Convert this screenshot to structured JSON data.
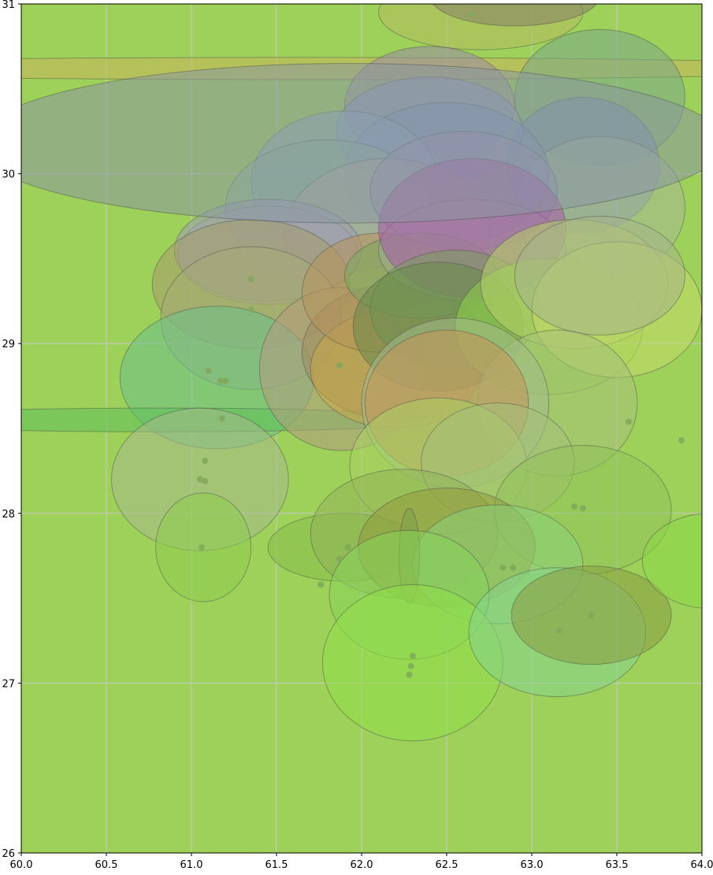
{
  "chart_data": {
    "type": "scatter",
    "title": "",
    "xlabel": "",
    "ylabel": "",
    "xlim": [
      60.0,
      64.0
    ],
    "ylim": [
      26,
      31
    ],
    "grid": true,
    "background_color": "#9dd15a",
    "x_ticks": [
      "60.0",
      "60.5",
      "61.0",
      "61.5",
      "62.0",
      "62.5",
      "63.0",
      "63.5",
      "64.0"
    ],
    "y_ticks": [
      "26",
      "27",
      "28",
      "29",
      "30",
      "31"
    ],
    "series": [
      {
        "marker": "ellipse",
        "points": [
          {
            "x": 61.6,
            "y": 30.62,
            "rx": 3.5,
            "ry": 0.065,
            "color": "#c9b55a"
          },
          {
            "x": 62.7,
            "y": 30.95,
            "rx": 0.6,
            "ry": 0.22,
            "color": "#b3bb5e"
          },
          {
            "x": 62.9,
            "y": 31.05,
            "rx": 0.5,
            "ry": 0.18,
            "color": "#8a7f6a"
          },
          {
            "x": 63.4,
            "y": 30.45,
            "rx": 0.5,
            "ry": 0.4,
            "color": "#7aa889"
          },
          {
            "x": 63.3,
            "y": 30.05,
            "rx": 0.45,
            "ry": 0.4,
            "color": "#7a88b8"
          },
          {
            "x": 63.4,
            "y": 29.8,
            "rx": 0.5,
            "ry": 0.42,
            "color": "#a7b898"
          },
          {
            "x": 62.4,
            "y": 30.4,
            "rx": 0.5,
            "ry": 0.35,
            "color": "#9a8aa8"
          },
          {
            "x": 62.4,
            "y": 30.25,
            "rx": 0.55,
            "ry": 0.32,
            "color": "#8b95c8"
          },
          {
            "x": 62.5,
            "y": 30.0,
            "rx": 0.6,
            "ry": 0.42,
            "color": "#7f8fbf"
          },
          {
            "x": 61.9,
            "y": 29.95,
            "rx": 0.55,
            "ry": 0.42,
            "color": "#8aa6c4"
          },
          {
            "x": 61.8,
            "y": 29.8,
            "rx": 0.6,
            "ry": 0.4,
            "color": "#88b49a"
          },
          {
            "x": 62.15,
            "y": 29.65,
            "rx": 0.6,
            "ry": 0.44,
            "color": "#b4ab9b"
          },
          {
            "x": 62.6,
            "y": 29.9,
            "rx": 0.55,
            "ry": 0.35,
            "color": "#9a8fb6"
          },
          {
            "x": 61.45,
            "y": 29.52,
            "rx": 0.53,
            "ry": 0.29,
            "color": "#a8a8a8"
          },
          {
            "x": 61.45,
            "y": 29.55,
            "rx": 0.55,
            "ry": 0.3,
            "color": "#9c9cb2"
          },
          {
            "x": 61.35,
            "y": 29.35,
            "rx": 0.58,
            "ry": 0.38,
            "color": "#a59a6c"
          },
          {
            "x": 61.35,
            "y": 29.15,
            "rx": 0.53,
            "ry": 0.42,
            "color": "#a6ab78"
          },
          {
            "x": 61.15,
            "y": 28.8,
            "rx": 0.57,
            "ry": 0.42,
            "color": "#6bc08a"
          },
          {
            "x": 60.8,
            "y": 28.55,
            "rx": 1.7,
            "ry": 0.07,
            "color": "#5fbf5a"
          },
          {
            "x": 61.05,
            "y": 28.2,
            "rx": 0.52,
            "ry": 0.42,
            "color": "#a5b98a"
          },
          {
            "x": 61.07,
            "y": 27.8,
            "rx": 0.28,
            "ry": 0.32,
            "color": "#8fcc50"
          },
          {
            "x": 61.88,
            "y": 28.85,
            "rx": 0.48,
            "ry": 0.48,
            "color": "#b39a7f"
          },
          {
            "x": 62.2,
            "y": 28.95,
            "rx": 0.55,
            "ry": 0.4,
            "color": "#9c8a5e"
          },
          {
            "x": 62.2,
            "y": 28.85,
            "rx": 0.5,
            "ry": 0.35,
            "color": "#c9a648"
          },
          {
            "x": 62.1,
            "y": 29.3,
            "rx": 0.45,
            "ry": 0.35,
            "color": "#b6935a"
          },
          {
            "x": 62.35,
            "y": 29.4,
            "rx": 0.45,
            "ry": 0.25,
            "color": "#7aaa5e"
          },
          {
            "x": 62.65,
            "y": 29.55,
            "rx": 0.55,
            "ry": 0.3,
            "color": "#9fab98"
          },
          {
            "x": 62.65,
            "y": 29.68,
            "rx": 0.55,
            "ry": 0.41,
            "color": "#a85aa8"
          },
          {
            "x": 62.55,
            "y": 29.2,
            "rx": 0.5,
            "ry": 0.35,
            "color": "#7c9a60"
          },
          {
            "x": 62.45,
            "y": 29.1,
            "rx": 0.5,
            "ry": 0.38,
            "color": "#6a8a4a"
          },
          {
            "x": 63.1,
            "y": 29.1,
            "rx": 0.55,
            "ry": 0.4,
            "color": "#8fd04a"
          },
          {
            "x": 63.25,
            "y": 29.35,
            "rx": 0.55,
            "ry": 0.38,
            "color": "#b6cf6a"
          },
          {
            "x": 63.5,
            "y": 29.2,
            "rx": 0.5,
            "ry": 0.4,
            "color": "#c5d86a"
          },
          {
            "x": 63.4,
            "y": 29.4,
            "rx": 0.5,
            "ry": 0.35,
            "color": "#a5b48a"
          },
          {
            "x": 63.15,
            "y": 28.65,
            "rx": 0.47,
            "ry": 0.43,
            "color": "#a8c07a"
          },
          {
            "x": 62.55,
            "y": 28.65,
            "rx": 0.55,
            "ry": 0.5,
            "color": "#a2bb8a"
          },
          {
            "x": 62.5,
            "y": 28.65,
            "rx": 0.48,
            "ry": 0.43,
            "color": "#c49458"
          },
          {
            "x": 62.45,
            "y": 28.28,
            "rx": 0.52,
            "ry": 0.4,
            "color": "#a9cf62"
          },
          {
            "x": 62.8,
            "y": 28.3,
            "rx": 0.45,
            "ry": 0.35,
            "color": "#a5c07a"
          },
          {
            "x": 63.3,
            "y": 28.02,
            "rx": 0.52,
            "ry": 0.38,
            "color": "#8fc25a"
          },
          {
            "x": 61.9,
            "y": 27.8,
            "rx": 0.45,
            "ry": 0.2,
            "color": "#86be4a"
          },
          {
            "x": 62.25,
            "y": 27.88,
            "rx": 0.55,
            "ry": 0.38,
            "color": "#91b258"
          },
          {
            "x": 62.5,
            "y": 27.8,
            "rx": 0.52,
            "ry": 0.35,
            "color": "#949a3e"
          },
          {
            "x": 62.8,
            "y": 27.7,
            "rx": 0.5,
            "ry": 0.35,
            "color": "#8cd07a"
          },
          {
            "x": 62.28,
            "y": 27.75,
            "rx": 0.06,
            "ry": 0.28,
            "color": "#7fa048"
          },
          {
            "x": 62.28,
            "y": 27.52,
            "rx": 0.47,
            "ry": 0.38,
            "color": "#86d35a"
          },
          {
            "x": 62.3,
            "y": 27.12,
            "rx": 0.53,
            "ry": 0.46,
            "color": "#8fdf48"
          },
          {
            "x": 63.15,
            "y": 27.3,
            "rx": 0.52,
            "ry": 0.38,
            "color": "#85d48c"
          },
          {
            "x": 63.35,
            "y": 27.4,
            "rx": 0.47,
            "ry": 0.29,
            "color": "#8a9a42"
          },
          {
            "x": 64.05,
            "y": 27.72,
            "rx": 0.4,
            "ry": 0.28,
            "color": "#8cd848"
          },
          {
            "x": 61.93,
            "y": 30.18,
            "rx": 2.2,
            "ry": 0.47,
            "color": "#8a98a0"
          }
        ]
      },
      {
        "marker": "dot",
        "points": [
          {
            "x": 61.1,
            "y": 28.84
          },
          {
            "x": 61.17,
            "y": 28.78
          },
          {
            "x": 61.2,
            "y": 28.78
          },
          {
            "x": 61.18,
            "y": 28.56
          },
          {
            "x": 61.08,
            "y": 28.31
          },
          {
            "x": 61.05,
            "y": 28.2
          },
          {
            "x": 61.08,
            "y": 28.19
          },
          {
            "x": 61.06,
            "y": 27.8
          },
          {
            "x": 61.76,
            "y": 27.58
          },
          {
            "x": 61.87,
            "y": 27.73
          },
          {
            "x": 61.92,
            "y": 27.8
          },
          {
            "x": 62.28,
            "y": 27.05
          },
          {
            "x": 62.29,
            "y": 27.1
          },
          {
            "x": 62.3,
            "y": 27.16
          },
          {
            "x": 62.83,
            "y": 27.68
          },
          {
            "x": 62.89,
            "y": 27.68
          },
          {
            "x": 63.16,
            "y": 27.31
          },
          {
            "x": 63.35,
            "y": 27.4
          },
          {
            "x": 63.25,
            "y": 28.04
          },
          {
            "x": 63.3,
            "y": 28.03
          },
          {
            "x": 63.57,
            "y": 28.54
          },
          {
            "x": 63.88,
            "y": 28.43
          },
          {
            "x": 61.87,
            "y": 28.87
          },
          {
            "x": 61.35,
            "y": 29.38
          },
          {
            "x": 61.35,
            "y": 29.2
          },
          {
            "x": 62.65,
            "y": 30.94
          }
        ]
      }
    ]
  }
}
